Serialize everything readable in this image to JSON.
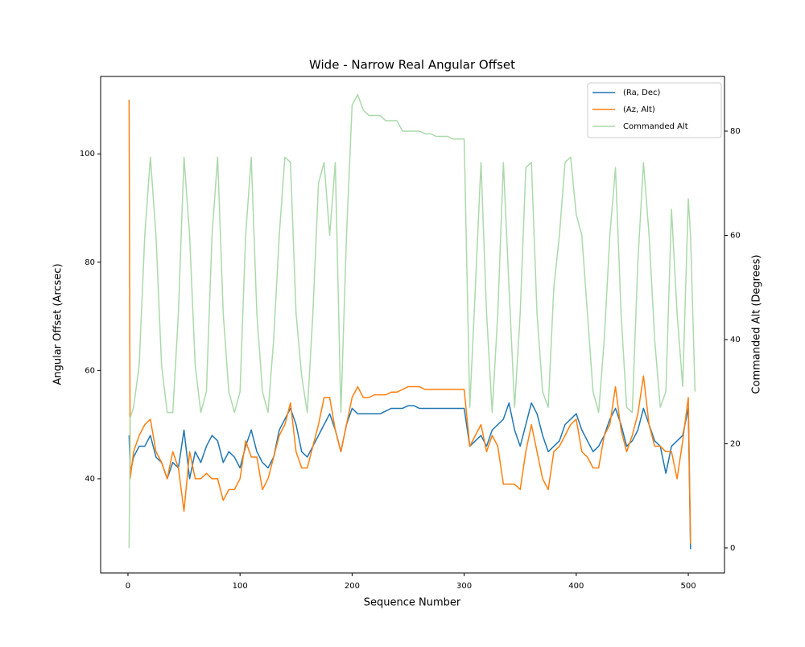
{
  "chart_data": {
    "type": "line",
    "title": "Wide - Narrow Real Angular Offset",
    "xlabel": "Sequence Number",
    "ylabel": "Angular Offset (Arcsec)",
    "y2label": "Commanded Alt (Degrees)",
    "xlim": [
      -24.4,
      532.3
    ],
    "xticks": [
      0,
      100,
      200,
      300,
      400,
      500
    ],
    "ylim": [
      22.6,
      114.3
    ],
    "yticks": [
      40,
      60,
      80,
      100
    ],
    "y2lim": [
      -4.8,
      90.5
    ],
    "y2ticks": [
      0,
      20,
      40,
      60,
      80
    ],
    "legend": "upper right",
    "x": [
      1,
      2,
      5,
      10,
      15,
      20,
      25,
      30,
      35,
      40,
      45,
      50,
      55,
      60,
      65,
      70,
      75,
      80,
      85,
      90,
      95,
      100,
      105,
      110,
      115,
      120,
      125,
      130,
      135,
      140,
      145,
      150,
      155,
      160,
      165,
      170,
      175,
      180,
      185,
      190,
      195,
      200,
      205,
      210,
      215,
      220,
      225,
      230,
      235,
      240,
      245,
      250,
      255,
      260,
      265,
      270,
      275,
      280,
      285,
      290,
      295,
      300,
      305,
      310,
      315,
      320,
      325,
      330,
      335,
      340,
      345,
      350,
      355,
      360,
      365,
      370,
      375,
      380,
      385,
      390,
      395,
      400,
      405,
      410,
      415,
      420,
      425,
      430,
      435,
      440,
      445,
      450,
      455,
      460,
      465,
      470,
      475,
      480,
      485,
      490,
      495,
      500,
      502,
      506
    ],
    "series": [
      {
        "name": "(Ra, Dec)",
        "color": "#1f77b4",
        "axis": "y",
        "values": [
          48,
          41,
          44,
          46,
          46,
          48,
          44,
          43,
          40,
          43,
          42,
          49,
          40,
          45,
          43,
          46,
          48,
          47,
          43,
          45,
          44,
          42,
          46,
          49,
          45,
          43,
          42,
          44,
          49,
          51,
          53,
          50,
          45,
          44,
          46,
          48,
          50,
          52,
          49,
          45,
          50,
          53,
          52,
          52,
          52,
          52,
          52,
          52.5,
          53,
          53,
          53,
          53.5,
          53.5,
          53,
          53,
          53,
          53,
          53,
          53,
          53,
          53,
          53,
          46,
          47,
          48,
          46,
          49,
          50,
          51,
          54,
          49,
          46,
          50,
          54,
          52,
          48,
          45,
          46,
          47,
          50,
          51,
          52,
          49,
          47,
          45,
          46,
          48,
          51,
          53,
          50,
          46,
          47,
          49,
          53,
          50,
          47,
          46,
          41,
          46,
          47,
          48,
          53,
          27,
          null
        ]
      },
      {
        "name": "(Az, Alt)",
        "color": "#ff7f0e",
        "axis": "y",
        "values": [
          110,
          40,
          45,
          48,
          50,
          51,
          45,
          43,
          40,
          45,
          42,
          34,
          45,
          40,
          40,
          41,
          40,
          40,
          36,
          38,
          38,
          40,
          47,
          44,
          44,
          38,
          40,
          44,
          48,
          50,
          54,
          45,
          42,
          42,
          46,
          50,
          55,
          55,
          49,
          45,
          50,
          55,
          57,
          55,
          55,
          55.5,
          55.5,
          55.5,
          56,
          56,
          56.5,
          57,
          57,
          57,
          56.5,
          56.5,
          56.5,
          56.5,
          56.5,
          56.5,
          56.5,
          56.5,
          46,
          48,
          50,
          45,
          48,
          46,
          39,
          39,
          39,
          38,
          45,
          50,
          45,
          40,
          38,
          45,
          46,
          48,
          50,
          51,
          45,
          44,
          42,
          42,
          48,
          50,
          57,
          49,
          45,
          48,
          52,
          59,
          50,
          46,
          46,
          45,
          45,
          40,
          47,
          55,
          28,
          null
        ]
      },
      {
        "name": "Commanded Alt",
        "color": "#abd9ab",
        "axis": "y2",
        "values": [
          0,
          25,
          27,
          35,
          60,
          75,
          60,
          35,
          26,
          26,
          45,
          75,
          60,
          35,
          26,
          30,
          60,
          75,
          45,
          30,
          26,
          30,
          60,
          75,
          45,
          30,
          26,
          40,
          60,
          75,
          74,
          45,
          33,
          26,
          45,
          70,
          74,
          60,
          74,
          26,
          60,
          85,
          87,
          84,
          83,
          83,
          83,
          82,
          82,
          82,
          80,
          80,
          80,
          80,
          79.5,
          79.5,
          79,
          79,
          79,
          78.5,
          78.5,
          78.5,
          27,
          50,
          74,
          45,
          26,
          45,
          74,
          50,
          27,
          45,
          73,
          74,
          45,
          30,
          27,
          50,
          60,
          74,
          75,
          64,
          60,
          45,
          30,
          26,
          40,
          60,
          73,
          45,
          27,
          26,
          55,
          74,
          60,
          40,
          27,
          30,
          65,
          45,
          31,
          67,
          60,
          30
        ]
      }
    ]
  }
}
